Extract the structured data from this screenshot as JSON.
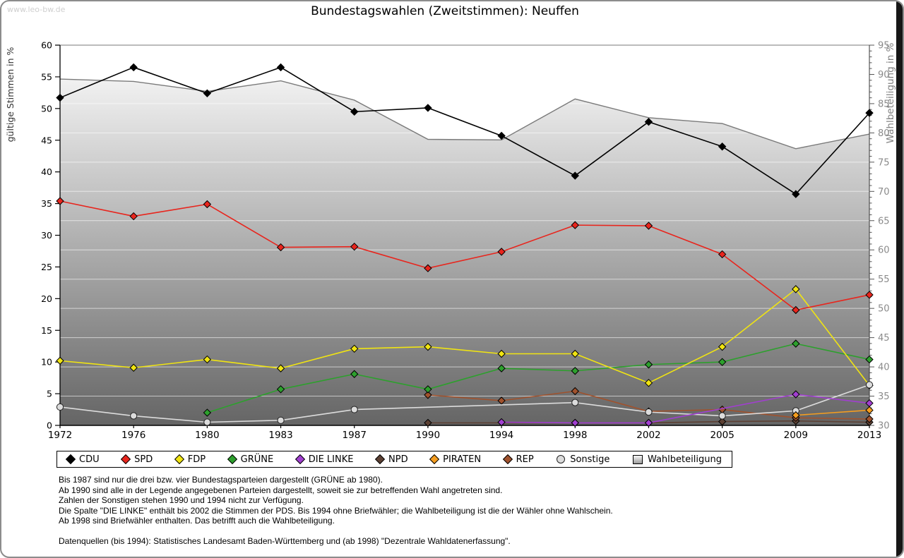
{
  "page": {
    "watermark": "www.leo-bw.de",
    "title": "Bundestagswahlen (Zweitstimmen): Neuffen"
  },
  "chart_data": {
    "type": "line",
    "title": "Bundestagswahlen (Zweitstimmen): Neuffen",
    "categories": [
      "1972",
      "1976",
      "1980",
      "1983",
      "1987",
      "1990",
      "1994",
      "1998",
      "2002",
      "2005",
      "2009",
      "2013"
    ],
    "left_axis": {
      "label": "gültige Stimmen in %",
      "min": 0,
      "max": 60,
      "tick_step": 5
    },
    "right_axis": {
      "label": "Wahlbeteiligung in %",
      "min": 30,
      "max": 95,
      "tick_step": 5,
      "minor_tick_step": 1
    },
    "grid": {
      "horizontal": true,
      "color": "#ffffff",
      "follows": "right_axis"
    },
    "legend_position": "bottom",
    "series": [
      {
        "name": "CDU",
        "color": "#000000",
        "marker": "diamond",
        "axis": "left",
        "type": "line",
        "values": [
          51.7,
          56.5,
          52.4,
          56.5,
          49.5,
          50.1,
          45.7,
          39.4,
          47.9,
          44.0,
          36.5,
          49.3
        ]
      },
      {
        "name": "SPD",
        "color": "#e8251d",
        "marker": "diamond",
        "axis": "left",
        "type": "line",
        "values": [
          35.4,
          33.0,
          34.9,
          28.1,
          28.2,
          24.8,
          27.4,
          31.6,
          31.5,
          27.0,
          18.2,
          20.6
        ]
      },
      {
        "name": "FDP",
        "color": "#f0e412",
        "marker": "diamond",
        "axis": "left",
        "type": "line",
        "values": [
          10.2,
          9.1,
          10.4,
          9.0,
          12.1,
          12.4,
          11.3,
          11.3,
          6.7,
          12.4,
          21.5,
          6.3
        ]
      },
      {
        "name": "GRÜNE",
        "color": "#2da02d",
        "marker": "diamond",
        "axis": "left",
        "type": "line",
        "values": [
          null,
          null,
          2.0,
          5.7,
          8.1,
          5.7,
          9.0,
          8.6,
          9.6,
          10.0,
          12.9,
          10.4
        ]
      },
      {
        "name": "DIE LINKE",
        "color": "#a13fd0",
        "marker": "diamond",
        "axis": "left",
        "type": "line",
        "values": [
          null,
          null,
          null,
          null,
          null,
          null,
          0.5,
          0.4,
          0.4,
          null,
          4.9,
          3.5
        ]
      },
      {
        "name": "NPD",
        "color": "#5c4033",
        "marker": "diamond",
        "axis": "left",
        "type": "line",
        "values": [
          null,
          null,
          null,
          null,
          null,
          0.4,
          null,
          0.4,
          0.4,
          0.6,
          0.7,
          0.5
        ]
      },
      {
        "name": "PIRATEN",
        "color": "#f59d1f",
        "marker": "diamond",
        "axis": "left",
        "type": "line",
        "values": [
          null,
          null,
          null,
          null,
          null,
          null,
          null,
          null,
          null,
          null,
          1.6,
          2.4
        ]
      },
      {
        "name": "REP",
        "color": "#a0522d",
        "marker": "diamond",
        "axis": "left",
        "type": "line",
        "values": [
          null,
          null,
          null,
          null,
          null,
          4.8,
          3.9,
          5.4,
          2.2,
          2.5,
          1.2,
          1.0
        ]
      },
      {
        "name": "Sonstige",
        "color": "#dcdcdc",
        "marker": "circle",
        "axis": "left",
        "type": "line",
        "values": [
          2.9,
          1.5,
          0.5,
          0.8,
          2.5,
          null,
          null,
          3.6,
          2.1,
          1.5,
          2.3,
          6.4
        ]
      },
      {
        "name": "Wahlbeteiligung",
        "color": "#7a7a7a",
        "marker": "none",
        "axis": "right",
        "type": "area",
        "values": [
          89.2,
          88.8,
          87.1,
          88.9,
          85.6,
          78.9,
          78.8,
          85.8,
          82.6,
          81.6,
          77.3,
          79.8
        ]
      }
    ],
    "draw_order": [
      "Wahlbeteiligung",
      "NPD",
      "REP",
      "GRÜNE",
      "FDP",
      "Sonstige",
      "PIRATEN",
      "DIE LINKE",
      "SPD",
      "CDU"
    ],
    "area_fill_gradient": [
      "#ffffff",
      "#656565"
    ]
  },
  "footnotes": {
    "notes": [
      "Bis 1987 sind nur die drei bzw. vier Bundestagsparteien dargestellt (GRÜNE ab 1980).",
      "Ab 1990 sind alle in der Legende angegebenen Parteien dargestellt, soweit sie zur betreffenden Wahl angetreten sind.",
      "Zahlen der Sonstigen stehen 1990 und 1994 nicht zur Verfügung.",
      "Die Spalte \"DIE LINKE\" enthält bis 2002 die Stimmen der PDS. Bis 1994 ohne Briefwähler; die Wahlbeteiligung ist die der Wähler ohne Wahlschein.",
      "Ab 1998 sind Briefwähler enthalten. Das betrifft auch die Wahlbeteiligung."
    ],
    "source": "Datenquellen (bis 1994): Statistisches Landesamt Baden-Württemberg und (ab 1998) \"Dezentrale Wahldatenerfassung\"."
  }
}
